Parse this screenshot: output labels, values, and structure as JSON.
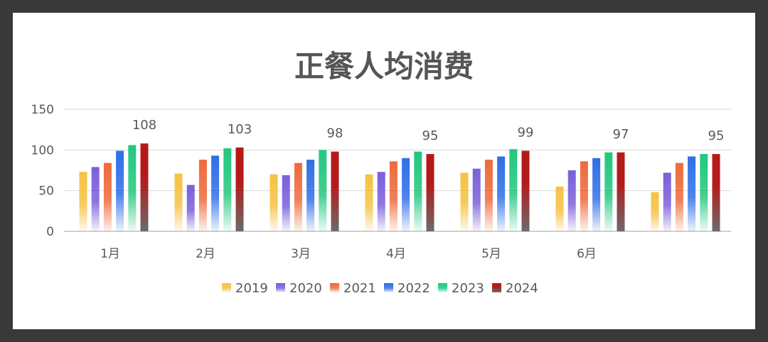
{
  "chart_data": {
    "type": "bar",
    "title": "正餐人均消费",
    "categories": [
      "1月",
      "2月",
      "3月",
      "4月",
      "5月",
      "6月",
      ""
    ],
    "ylim": [
      0,
      150
    ],
    "yticks": [
      0,
      50,
      100,
      150
    ],
    "grid": true,
    "legend_position": "bottom",
    "series": [
      {
        "name": "2019",
        "color": "#f5c242",
        "values": [
          73,
          71,
          70,
          70,
          72,
          55,
          48
        ]
      },
      {
        "name": "2020",
        "color": "#7b5fd9",
        "values": [
          79,
          57,
          69,
          73,
          77,
          75,
          72
        ]
      },
      {
        "name": "2021",
        "color": "#ee6a3c",
        "values": [
          84,
          88,
          84,
          86,
          88,
          86,
          84
        ]
      },
      {
        "name": "2022",
        "color": "#2f6fe8",
        "values": [
          99,
          93,
          88,
          90,
          92,
          90,
          92
        ]
      },
      {
        "name": "2023",
        "color": "#22c77f",
        "values": [
          106,
          102,
          100,
          98,
          101,
          97,
          95
        ]
      },
      {
        "name": "2024",
        "color": "#b51a1a",
        "values": [
          108,
          103,
          98,
          95,
          99,
          97,
          95
        ]
      }
    ],
    "data_labels": {
      "series": "2024",
      "values": [
        "108",
        "103",
        "98",
        "95",
        "99",
        "97",
        "95"
      ]
    }
  }
}
